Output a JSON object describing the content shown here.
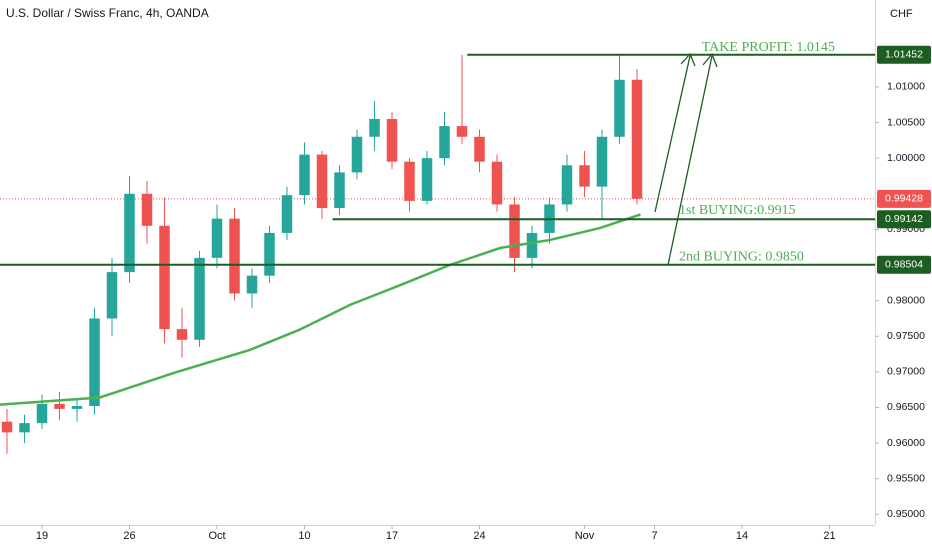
{
  "chart_data": {
    "type": "candlestick",
    "title": "U.S. Dollar / Swiss Franc, 4h, OANDA",
    "currency": "CHF",
    "up_color": "#26a69a",
    "down_color": "#ef5350",
    "x": [
      -2,
      -1,
      0,
      1,
      2,
      3,
      4,
      5,
      6,
      7,
      8,
      9,
      10,
      11,
      12,
      13,
      14,
      15,
      16,
      17,
      18,
      19,
      20,
      21,
      22,
      23,
      24,
      25,
      26,
      27,
      28,
      29,
      30,
      31,
      32,
      33,
      34
    ],
    "open": [
      0.963,
      0.9615,
      0.9628,
      0.9655,
      0.9648,
      0.9652,
      0.9775,
      0.984,
      0.995,
      0.9905,
      0.976,
      0.9745,
      0.986,
      0.9915,
      0.981,
      0.9835,
      0.9895,
      0.9948,
      1.0005,
      0.993,
      0.998,
      1.003,
      1.0055,
      0.9995,
      0.994,
      1.0,
      1.0045,
      1.003,
      0.9995,
      0.9935,
      0.986,
      0.9895,
      0.9935,
      0.999,
      0.996,
      1.003,
      1.011
    ],
    "high": [
      0.9648,
      0.964,
      0.9668,
      0.9672,
      0.9662,
      0.979,
      0.986,
      0.9975,
      0.9968,
      0.9945,
      0.979,
      0.987,
      0.9935,
      0.993,
      0.9845,
      0.9905,
      0.996,
      1.0022,
      1.001,
      0.999,
      1.004,
      1.008,
      1.0065,
      1.0,
      1.001,
      1.0065,
      1.0145,
      1.004,
      1.0005,
      0.9945,
      0.9905,
      0.9945,
      1.0005,
      1.001,
      1.004,
      1.0145,
      1.0125
    ],
    "low": [
      0.9585,
      0.96,
      0.962,
      0.9632,
      0.963,
      0.964,
      0.975,
      0.9825,
      0.988,
      0.974,
      0.972,
      0.9735,
      0.9845,
      0.98,
      0.979,
      0.9825,
      0.9885,
      0.9935,
      0.9915,
      0.992,
      0.997,
      1.001,
      0.9985,
      0.9925,
      0.9935,
      0.999,
      1.002,
      0.998,
      0.9925,
      0.984,
      0.9845,
      0.988,
      0.9925,
      0.9945,
      0.9915,
      1.002,
      0.9935
    ],
    "close": [
      0.9615,
      0.9628,
      0.9655,
      0.9648,
      0.9652,
      0.9775,
      0.984,
      0.995,
      0.9905,
      0.976,
      0.9745,
      0.986,
      0.9915,
      0.981,
      0.9835,
      0.9895,
      0.9948,
      1.0005,
      0.993,
      0.998,
      1.003,
      1.0055,
      0.9995,
      0.994,
      1.0,
      1.0045,
      1.003,
      0.9995,
      0.9935,
      0.986,
      0.9895,
      0.9935,
      0.999,
      0.996,
      1.003,
      1.011,
      0.9943
    ],
    "moving_average": {
      "color": "#4caf50",
      "x": [
        -2.4,
        3.3,
        7.6,
        11.9,
        14.7,
        17.6,
        20.5,
        23.3,
        26.2,
        29,
        31.9,
        34.2
      ],
      "values": [
        0.9654,
        0.9664,
        0.9699,
        0.9731,
        0.9759,
        0.9794,
        0.9822,
        0.985,
        0.9874,
        0.9885,
        0.9902,
        0.9921
      ]
    },
    "levels": [
      {
        "value": 1.01452,
        "x_start": 24.3,
        "color": "#1b5e20"
      },
      {
        "value": 0.99142,
        "x_start": 16.6,
        "color": "#1b5e20"
      },
      {
        "value": 0.98504,
        "x_start": -2.4,
        "color": "#1b5e20"
      }
    ],
    "last_price": {
      "value": 0.99428,
      "color": "#ef5350"
    },
    "annotations": [
      {
        "text": "TAKE PROFIT: 1.0145",
        "x": 37.7,
        "y": 1.0155
      },
      {
        "text": "1st BUYING:0.9915",
        "x": 36.4,
        "y": 0.9926
      },
      {
        "text": "2nd BUYING: 0.9850",
        "x": 36.4,
        "y": 0.9861
      }
    ],
    "xlim": [
      -2.4,
      47.6
    ],
    "ylim": [
      0.9485,
      1.0222
    ],
    "xticks": [
      {
        "value": 0,
        "label": "19"
      },
      {
        "value": 5,
        "label": "26"
      },
      {
        "value": 10,
        "label": "Oct"
      },
      {
        "value": 15,
        "label": "10"
      },
      {
        "value": 20,
        "label": "17"
      },
      {
        "value": 25,
        "label": "24"
      },
      {
        "value": 31,
        "label": "Nov"
      },
      {
        "value": 35,
        "label": "7"
      },
      {
        "value": 40,
        "label": "14"
      },
      {
        "value": 45,
        "label": "21"
      }
    ],
    "yticks": [
      {
        "value": 0.95,
        "label": "0.95000"
      },
      {
        "value": 0.955,
        "label": "0.95500"
      },
      {
        "value": 0.96,
        "label": "0.96000"
      },
      {
        "value": 0.965,
        "label": "0.96500"
      },
      {
        "value": 0.97,
        "label": "0.97000"
      },
      {
        "value": 0.975,
        "label": "0.97500"
      },
      {
        "value": 0.98,
        "label": "0.98000"
      },
      {
        "value": 0.99,
        "label": "0.99000"
      },
      {
        "value": 1.0,
        "label": "1.00000"
      },
      {
        "value": 1.005,
        "label": "1.00500"
      },
      {
        "value": 1.01,
        "label": "1.01000"
      }
    ]
  }
}
